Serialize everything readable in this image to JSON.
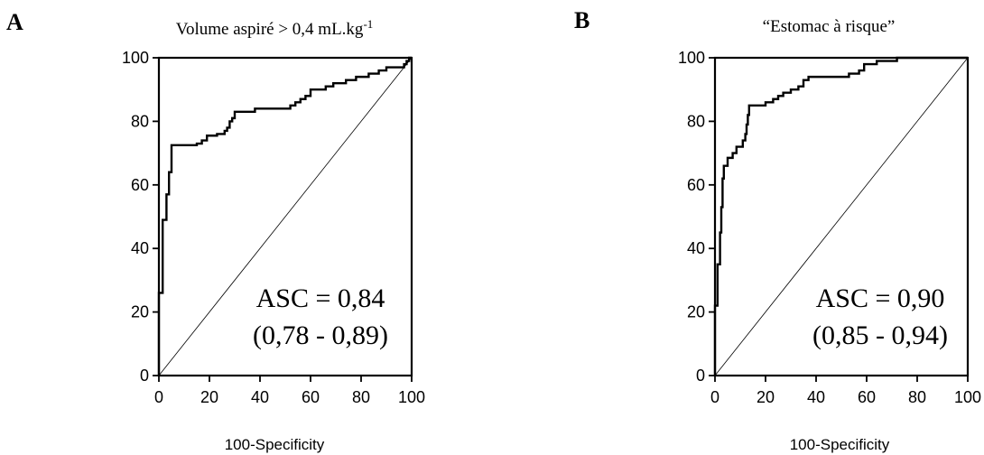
{
  "chart_data": [
    {
      "type": "line",
      "panel_label": "A",
      "title": "Volume aspiré > 0,4 mL.kg",
      "title_superscript": "-1",
      "xlabel": "100-Specificity",
      "ylabel": "",
      "xlim": [
        0,
        100
      ],
      "ylim": [
        0,
        100
      ],
      "xticks": [
        "0",
        "20",
        "40",
        "60",
        "80",
        "100"
      ],
      "yticks": [
        "0",
        "20",
        "40",
        "60",
        "80",
        "100"
      ],
      "auc_label": "ASC = 0,84",
      "ci_label": "(0,78 - 0,89)",
      "series": [
        {
          "kind": "roc",
          "points": [
            [
              0,
              0
            ],
            [
              0,
              26
            ],
            [
              1.5,
              26
            ],
            [
              1.5,
              49
            ],
            [
              3,
              49
            ],
            [
              3,
              57
            ],
            [
              4,
              57
            ],
            [
              4,
              64
            ],
            [
              5,
              64
            ],
            [
              5,
              72.5
            ],
            [
              15,
              72.5
            ],
            [
              15,
              73
            ],
            [
              17,
              73
            ],
            [
              17,
              74
            ],
            [
              19,
              74
            ],
            [
              19,
              75.5
            ],
            [
              23,
              75.5
            ],
            [
              23,
              76
            ],
            [
              26,
              76
            ],
            [
              26,
              77
            ],
            [
              27,
              77
            ],
            [
              27,
              78
            ],
            [
              28,
              78
            ],
            [
              28,
              80
            ],
            [
              29,
              80
            ],
            [
              29,
              81
            ],
            [
              30,
              81
            ],
            [
              30,
              83
            ],
            [
              38,
              83
            ],
            [
              38,
              84
            ],
            [
              52,
              84
            ],
            [
              52,
              85
            ],
            [
              54,
              85
            ],
            [
              54,
              86
            ],
            [
              56,
              86
            ],
            [
              56,
              87
            ],
            [
              58,
              87
            ],
            [
              58,
              88
            ],
            [
              60,
              88
            ],
            [
              60,
              90
            ],
            [
              66,
              90
            ],
            [
              66,
              91
            ],
            [
              69,
              91
            ],
            [
              69,
              92
            ],
            [
              74,
              92
            ],
            [
              74,
              93
            ],
            [
              78,
              93
            ],
            [
              78,
              94
            ],
            [
              83,
              94
            ],
            [
              83,
              95
            ],
            [
              87,
              95
            ],
            [
              87,
              96
            ],
            [
              90,
              96
            ],
            [
              90,
              97
            ],
            [
              97,
              97
            ],
            [
              97,
              98
            ],
            [
              98,
              98
            ],
            [
              98,
              99
            ],
            [
              99,
              99
            ],
            [
              99,
              100
            ],
            [
              100,
              100
            ]
          ]
        },
        {
          "kind": "reference",
          "points": [
            [
              0,
              0
            ],
            [
              100,
              100
            ]
          ]
        }
      ]
    },
    {
      "type": "line",
      "panel_label": "B",
      "title": "“Estomac à risque”",
      "title_superscript": "",
      "xlabel": "100-Specificity",
      "ylabel": "",
      "xlim": [
        0,
        100
      ],
      "ylim": [
        0,
        100
      ],
      "xticks": [
        "0",
        "20",
        "40",
        "60",
        "80",
        "100"
      ],
      "yticks": [
        "0",
        "20",
        "40",
        "60",
        "80",
        "100"
      ],
      "auc_label": "ASC = 0,90",
      "ci_label": "(0,85 - 0,94)",
      "series": [
        {
          "kind": "roc",
          "points": [
            [
              0,
              0
            ],
            [
              0,
              22
            ],
            [
              1,
              22
            ],
            [
              1,
              35
            ],
            [
              2,
              35
            ],
            [
              2,
              45
            ],
            [
              2.5,
              45
            ],
            [
              2.5,
              53
            ],
            [
              3,
              53
            ],
            [
              3,
              62
            ],
            [
              3.5,
              62
            ],
            [
              3.5,
              66
            ],
            [
              5,
              66
            ],
            [
              5,
              68.5
            ],
            [
              7,
              68.5
            ],
            [
              7,
              70
            ],
            [
              8.5,
              70
            ],
            [
              8.5,
              72
            ],
            [
              11,
              72
            ],
            [
              11,
              74
            ],
            [
              12,
              74
            ],
            [
              12,
              76
            ],
            [
              12.5,
              76
            ],
            [
              12.5,
              79
            ],
            [
              13,
              79
            ],
            [
              13,
              82
            ],
            [
              13.5,
              82
            ],
            [
              13.5,
              85
            ],
            [
              20,
              85
            ],
            [
              20,
              86
            ],
            [
              23,
              86
            ],
            [
              23,
              87
            ],
            [
              25,
              87
            ],
            [
              25,
              88
            ],
            [
              27,
              88
            ],
            [
              27,
              89
            ],
            [
              30,
              89
            ],
            [
              30,
              90
            ],
            [
              33,
              90
            ],
            [
              33,
              91
            ],
            [
              35,
              91
            ],
            [
              35,
              93
            ],
            [
              37,
              93
            ],
            [
              37,
              94
            ],
            [
              53,
              94
            ],
            [
              53,
              95
            ],
            [
              57,
              95
            ],
            [
              57,
              96
            ],
            [
              59,
              96
            ],
            [
              59,
              98
            ],
            [
              64,
              98
            ],
            [
              64,
              99
            ],
            [
              72,
              99
            ],
            [
              72,
              100
            ],
            [
              100,
              100
            ]
          ]
        },
        {
          "kind": "reference",
          "points": [
            [
              0,
              0
            ],
            [
              100,
              100
            ]
          ]
        }
      ]
    }
  ]
}
